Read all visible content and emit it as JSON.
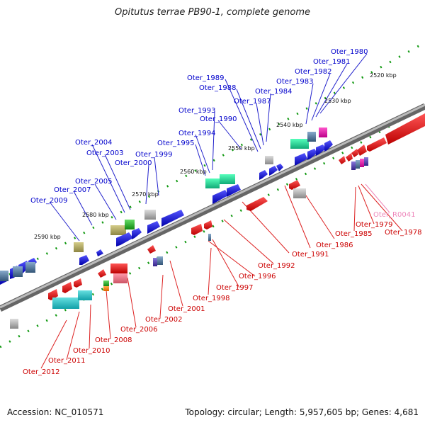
{
  "title": "Opitutus terrae PB90-1, complete genome",
  "footer": {
    "accession": "Accession: NC_010571",
    "summary": "Topology: circular; Length: 5,957,605 bp; Genes: 4,681"
  },
  "colors": {
    "plus_label": "#0000cc",
    "minus_label": "#cc0000",
    "rna_label": "#ee88bb",
    "backbone": "#888888",
    "tick": "#119911"
  },
  "scale_labels": [
    "2520 kbp",
    "2530 kbp",
    "2540 kbp",
    "2550 kbp",
    "2560 kbp",
    "2570 kbp",
    "2580 kbp",
    "2590 kbp"
  ],
  "plus_labels": [
    "Oter_1980",
    "Oter_1981",
    "Oter_1982",
    "Oter_1983",
    "Oter_1984",
    "Oter_1987",
    "Oter_1988",
    "Oter_1989",
    "Oter_1990",
    "Oter_1993",
    "Oter_1994",
    "Oter_1995",
    "Oter_1999",
    "Oter_2000",
    "Oter_2003",
    "Oter_2004",
    "Oter_2005",
    "Oter_2007",
    "Oter_2009"
  ],
  "minus_labels": [
    "Oter_1978",
    "Oter_1979",
    "Oter_1985",
    "Oter_1986",
    "Oter_1991",
    "Oter_1992",
    "Oter_1996",
    "Oter_1997",
    "Oter_1998",
    "Oter_2001",
    "Oter_2002",
    "Oter_2006",
    "Oter_2008",
    "Oter_2010",
    "Oter_2011",
    "Oter_2012"
  ],
  "rna_labels": [
    "Oter_R0041"
  ]
}
